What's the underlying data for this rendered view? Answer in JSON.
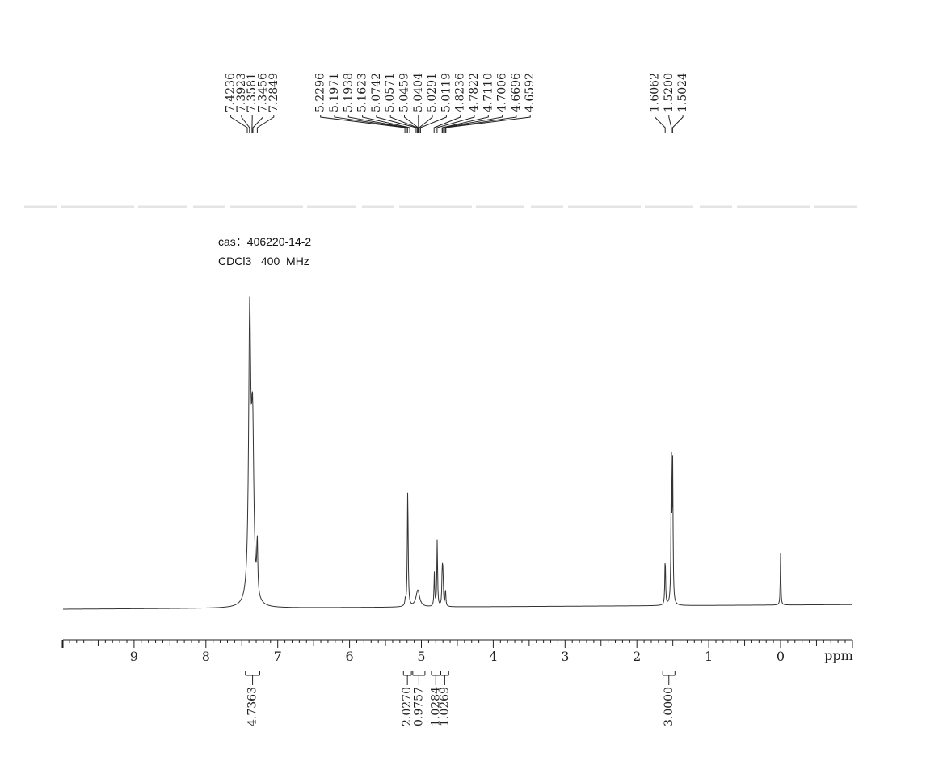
{
  "sample": {
    "cas": "cas：406220-14-2",
    "solvent_freq": "CDCl3   400  MHz"
  },
  "chart_data": {
    "type": "line",
    "title": "",
    "xlabel": "ppm",
    "ylabel": "",
    "xlim": [
      10.0,
      -1.0
    ],
    "x_reversed": true,
    "x_ticks": [
      "9",
      "8",
      "7",
      "6",
      "5",
      "4",
      "3",
      "2",
      "1",
      "0"
    ],
    "x_tick_values": [
      9,
      8,
      7,
      6,
      5,
      4,
      3,
      2,
      1,
      0
    ],
    "grid": false,
    "legend": "none",
    "peak_labels": {
      "group1": [
        "7.4236",
        "7.3923",
        "7.3581",
        "7.3456",
        "7.2849"
      ],
      "group2": [
        "5.2296",
        "5.1971",
        "5.1938",
        "5.1623",
        "5.0742",
        "5.0571",
        "5.0459",
        "5.0404",
        "5.0291",
        "5.0119",
        "4.8236",
        "4.7822",
        "4.7110",
        "4.7006",
        "4.6696",
        "4.6592"
      ],
      "group3": [
        "1.6062",
        "1.5200",
        "1.5024"
      ]
    },
    "peaks": [
      {
        "ppm": 7.39,
        "height": 1.0,
        "width": 0.018
      },
      {
        "ppm": 7.35,
        "height": 0.6,
        "width": 0.02
      },
      {
        "ppm": 7.285,
        "height": 0.19,
        "width": 0.008
      },
      {
        "ppm": 5.225,
        "height": 0.018,
        "width": 0.006
      },
      {
        "ppm": 5.19,
        "height": 0.42,
        "width": 0.007
      },
      {
        "ppm": 5.05,
        "height": 0.06,
        "width": 0.03
      },
      {
        "ppm": 4.82,
        "height": 0.12,
        "width": 0.006
      },
      {
        "ppm": 4.78,
        "height": 0.24,
        "width": 0.006
      },
      {
        "ppm": 4.71,
        "height": 0.13,
        "width": 0.006
      },
      {
        "ppm": 4.7,
        "height": 0.11,
        "width": 0.006
      },
      {
        "ppm": 4.665,
        "height": 0.06,
        "width": 0.006
      },
      {
        "ppm": 1.606,
        "height": 0.175,
        "width": 0.006
      },
      {
        "ppm": 1.52,
        "height": 0.52,
        "width": 0.006
      },
      {
        "ppm": 1.502,
        "height": 0.49,
        "width": 0.006
      },
      {
        "ppm": 0.0,
        "height": 0.185,
        "width": 0.005
      }
    ],
    "integrals": [
      {
        "value": "4.7363",
        "from": 7.45,
        "to": 7.25
      },
      {
        "value": "2.0270",
        "from": 5.25,
        "to": 5.14
      },
      {
        "value": "0.9757",
        "from": 5.12,
        "to": 4.95
      },
      {
        "value": "1.0284",
        "from": 4.86,
        "to": 4.74
      },
      {
        "value": "1.0269",
        "from": 4.73,
        "to": 4.62
      },
      {
        "value": "3.0000",
        "from": 1.64,
        "to": 1.47
      }
    ]
  }
}
